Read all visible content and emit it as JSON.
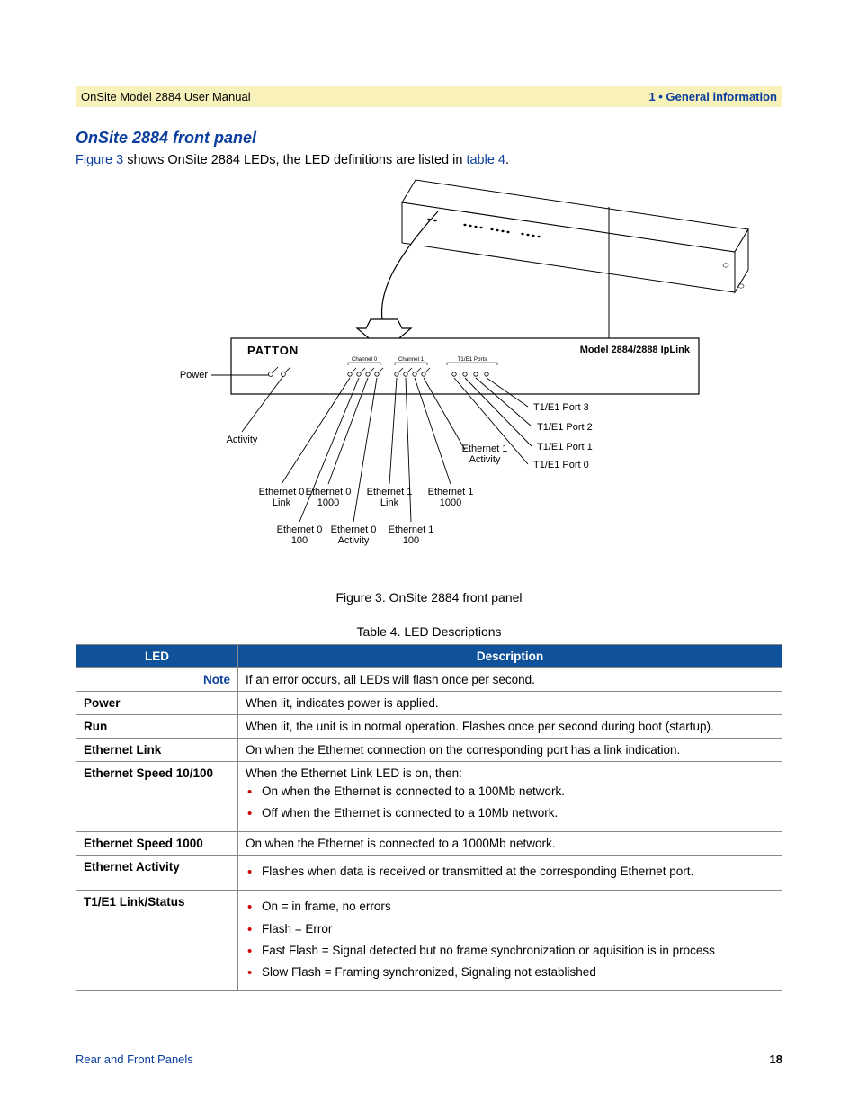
{
  "header": {
    "left": "OnSite Model 2884 User Manual",
    "right": "1 • General information"
  },
  "section": {
    "title": "OnSite 2884 front panel",
    "intro_pre": " shows OnSite 2884 LEDs, the LED definitions are listed in ",
    "intro_post": ".",
    "fig_link": "Figure 3",
    "table_link": "table 4"
  },
  "figure": {
    "caption": "Figure 3. OnSite 2884 front panel",
    "model_label": "Model 2884/2888 IpLink",
    "brand": "PATTON",
    "labels": {
      "power": "Power",
      "activity": "Activity",
      "eth0_link": "Ethernet 0\nLink",
      "eth0_100": "Ethernet 0\n100",
      "eth0_1000": "Ethernet 0\n1000",
      "eth0_act": "Ethernet 0\nActivity",
      "eth1_link": "Ethernet 1\nLink",
      "eth1_100": "Ethernet 1\n100",
      "eth1_1000": "Ethernet 1\n1000",
      "eth1_act": "Ethernet 1\nActivity",
      "t1_p0": "T1/E1 Port 0",
      "t1_p1": "T1/E1 Port 1",
      "t1_p2": "T1/E1 Port 2",
      "t1_p3": "T1/E1 Port 3",
      "channel0": "Channel 0",
      "channel1": "Channel 1",
      "t1e1_ports": "T1/E1 Ports"
    },
    "colors": {
      "stroke": "#000000",
      "fill": "#ffffff",
      "arrow_fill": "#ffffff"
    }
  },
  "table": {
    "caption": "Table 4.  LED Descriptions",
    "header_bg": "#10529a",
    "header_fg": "#ffffff",
    "columns": [
      "LED",
      "Description"
    ],
    "note_label": "Note",
    "note_text": "If an error occurs, all LEDs will flash once per second.",
    "rows": [
      {
        "led": "Power",
        "desc_text": "When lit, indicates power is applied."
      },
      {
        "led": "Run",
        "desc_text": "When lit, the unit is in normal operation. Flashes once per second during boot (startup)."
      },
      {
        "led": "Ethernet Link",
        "desc_text": "On when the Ethernet connection on the corresponding port has a link indication."
      },
      {
        "led": "Ethernet Speed 10/100",
        "desc_text": "When the Ethernet Link LED is on, then:",
        "bullets": [
          "On when the Ethernet is connected to a 100Mb network.",
          "Off when the Ethernet is connected to a 10Mb network."
        ]
      },
      {
        "led": "Ethernet Speed 1000",
        "desc_text": "On when the Ethernet is connected to a 1000Mb network."
      },
      {
        "led": "Ethernet Activity",
        "bullets": [
          "Flashes when data is received or transmitted at the corresponding Ethernet port."
        ]
      },
      {
        "led": "T1/E1 Link/Status",
        "bullets": [
          "On = in frame, no errors",
          "Flash = Error",
          "Fast Flash = Signal detected but no frame synchronization or aquisition is in process",
          "Slow Flash = Framing synchronized, Signaling not established"
        ]
      }
    ]
  },
  "footer": {
    "left": "Rear and Front Panels",
    "page": "18"
  }
}
